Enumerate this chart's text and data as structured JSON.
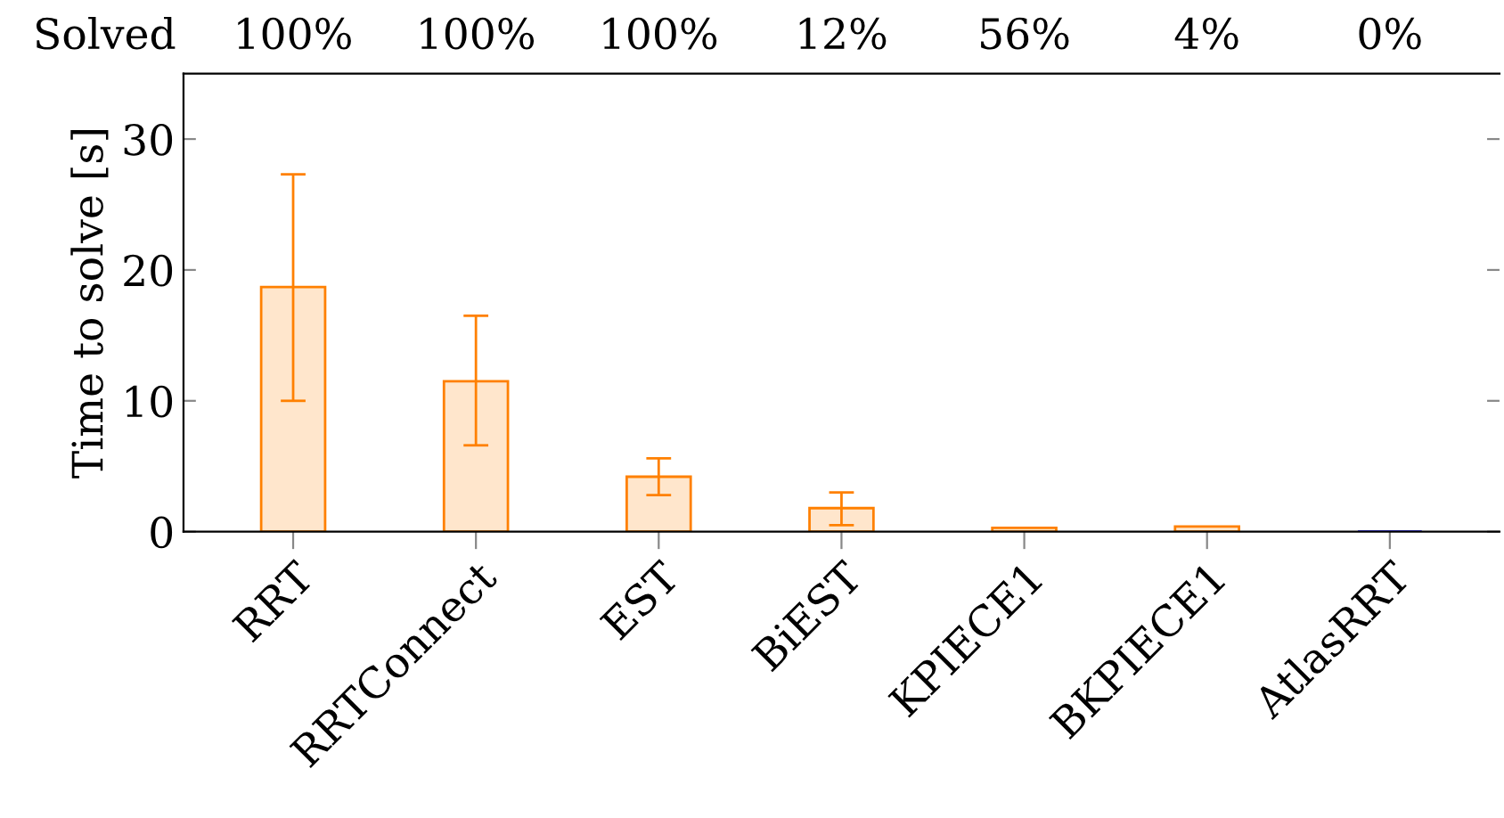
{
  "chart_data": {
    "type": "bar",
    "ylabel": "Time to solve [s]",
    "categories": [
      "RRT",
      "RRTConnect",
      "EST",
      "BiEST",
      "KPIECE1",
      "BKPIECE1",
      "AtlasRRT"
    ],
    "values": [
      18.7,
      11.5,
      4.2,
      1.8,
      0.3,
      0.4,
      0
    ],
    "errors": [
      [
        10.0,
        27.3
      ],
      [
        6.6,
        16.5
      ],
      [
        2.8,
        5.6
      ],
      [
        0.5,
        3.0
      ],
      null,
      null,
      null
    ],
    "colors": [
      "#ff8000",
      "#ff8000",
      "#ff8000",
      "#ff8000",
      "#ff8000",
      "#ff8000",
      "#0000ff"
    ],
    "ylim": [
      0,
      35
    ],
    "yticks": [
      0,
      10,
      20,
      30
    ],
    "grid": false,
    "legend": false,
    "annotations": [
      "Solved",
      "100%",
      "100%",
      "100%",
      "12%",
      "56%",
      "4%",
      "0%"
    ]
  }
}
